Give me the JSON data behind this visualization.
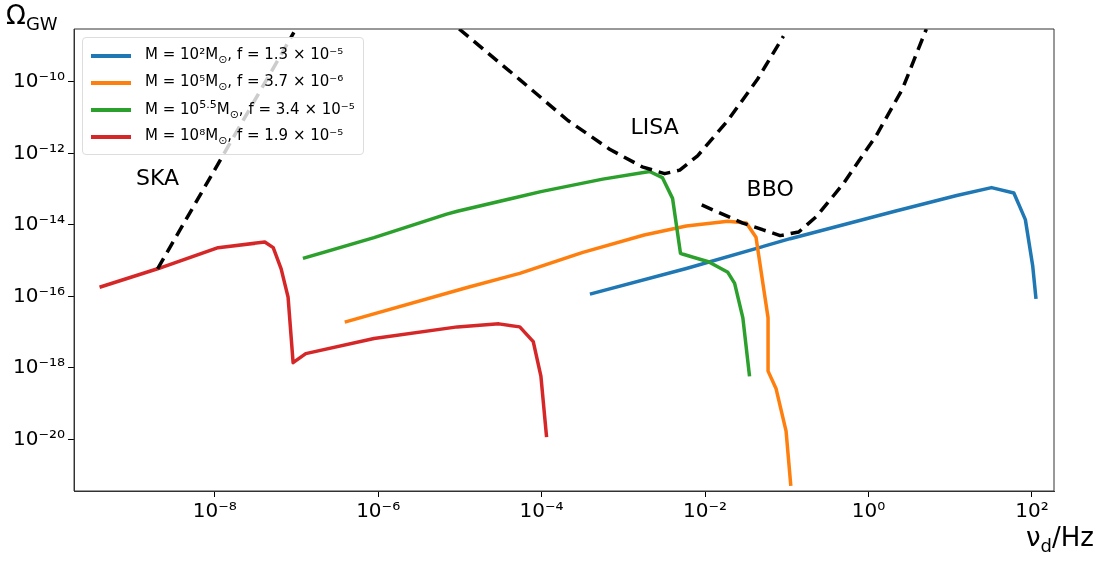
{
  "chart_data": {
    "type": "line",
    "log": "xy",
    "xlabel": "ν$_{d}$/Hz",
    "ylabel": "Ω$_{GW}$",
    "legend": "top left",
    "marker": "none",
    "xlim": [
      1.9e-10,
      186
    ],
    "ylim": [
      3.6e-22,
      3e-09
    ],
    "xticks": [
      {
        "value": 1e-08,
        "label": "10⁻⁸"
      },
      {
        "value": 1e-06,
        "label": "10⁻⁶"
      },
      {
        "value": 0.0001,
        "label": "10⁻⁴"
      },
      {
        "value": 0.01,
        "label": "10⁻²"
      },
      {
        "value": 1,
        "label": "10⁰"
      },
      {
        "value": 100,
        "label": "10²"
      }
    ],
    "yticks": [
      {
        "value": 1e-20,
        "label": "10⁻²⁰"
      },
      {
        "value": 1e-18,
        "label": "10⁻¹⁸"
      },
      {
        "value": 1e-16,
        "label": "10⁻¹⁶"
      },
      {
        "value": 1e-14,
        "label": "10⁻¹⁴"
      },
      {
        "value": 1e-12,
        "label": "10⁻¹²"
      },
      {
        "value": 1e-10,
        "label": "10⁻¹⁰"
      }
    ],
    "annotations": [
      "SKA",
      "LISA",
      "BBO"
    ],
    "series": [
      {
        "name": "M = 10²M$_{⊙}$, f = 1.3 × 10⁻⁵",
        "color": "#1f77b4",
        "line_style": "solid",
        "x": [
          0.00039,
          0.0059,
          0.11,
          2.1,
          12,
          32,
          60,
          83,
          102,
          112
        ],
        "values": [
          1.15e-16,
          6e-16,
          4.1e-15,
          2.4e-14,
          6.6e-14,
          1.1e-13,
          7.8e-14,
          1.4e-14,
          7.2e-16,
          8.5e-17
        ]
      },
      {
        "name": "M = 10⁵M$_{⊙}$, f = 3.7 × 10⁻⁶",
        "color": "#ff7f0e",
        "line_style": "solid",
        "x": [
          3.9e-07,
          1.26e-05,
          5.4e-05,
          0.00032,
          0.0018,
          0.0059,
          0.019,
          0.032,
          0.042,
          0.051,
          0.059,
          0.059,
          0.074,
          0.098,
          0.112
        ],
        "values": [
          1.9e-17,
          1.8e-16,
          4.4e-16,
          1.7e-15,
          5.2e-15,
          9.3e-15,
          1.26e-14,
          1.12e-14,
          4.5e-15,
          2.3e-16,
          2.5e-17,
          8.1e-19,
          2.6e-19,
          1.7e-20,
          5e-22
        ]
      },
      {
        "name": "M = 10$^{5.5}$M$_{⊙}$, f = 3.4 × 10⁻⁵",
        "color": "#2ca02c",
        "line_style": "solid",
        "x": [
          1.2e-07,
          8.9e-07,
          6.9e-06,
          9.3e-06,
          9.8e-05,
          0.00056,
          0.0021,
          0.003,
          0.004,
          0.005,
          0.0054,
          0.011,
          0.019,
          0.023,
          0.029,
          0.035
        ],
        "values": [
          1.15e-15,
          4.4e-15,
          2e-14,
          2.4e-14,
          8.5e-14,
          1.9e-13,
          3.1e-13,
          2.1e-13,
          5.5e-14,
          1.6e-15,
          1.5e-15,
          9.3e-16,
          4.7e-16,
          2.3e-16,
          2.5e-17,
          5.8e-19
        ]
      },
      {
        "name": "M = 10⁸M$_{⊙}$, f = 1.9 × 10⁻⁵",
        "color": "#d62728",
        "line_style": "solid",
        "x": [
          3.9e-10,
          2e-09,
          1.1e-08,
          4.1e-08,
          5.2e-08,
          6.5e-08,
          7.9e-08,
          8.7e-08,
          9.1e-08,
          1.3e-07,
          8.9e-07,
          9.3e-06,
          3e-05,
          5.4e-05,
          7.9e-05,
          9.8e-05,
          0.000115
        ],
        "values": [
          1.8e-16,
          5.9e-16,
          2.3e-15,
          3.3e-15,
          2.3e-15,
          5.9e-16,
          9.5e-17,
          5.4e-18,
          1.4e-18,
          2.5e-18,
          6.6e-18,
          1.4e-17,
          1.7e-17,
          1.4e-17,
          5.4e-18,
          5.9e-19,
          1.15e-20
        ]
      },
      {
        "color": "#000000",
        "line_style": "dashed",
        "x": [
          2e-09,
          9.3e-08
        ],
        "values": [
          5.9e-16,
          2.4e-09
        ]
      },
      {
        "color": "#000000",
        "line_style": "dashed",
        "x": [
          9.8e-06,
          5.4e-05,
          0.00021,
          0.00068,
          0.0017,
          0.0032,
          0.0049,
          0.0081,
          0.019,
          0.044,
          0.091
        ],
        "values": [
          3e-09,
          1.15e-10,
          8.3e-12,
          1.3e-12,
          4.2e-13,
          2.7e-13,
          3.4e-13,
          8.5e-13,
          8.3e-12,
          1.2e-10,
          1.9e-09
        ]
      },
      {
        "color": "#000000",
        "line_style": "dashed",
        "x": [
          0.0091,
          0.029,
          0.083,
          0.14,
          0.23,
          0.49,
          1.26,
          2.6,
          5.1
        ],
        "values": [
          3.6e-14,
          1.12e-14,
          5e-15,
          6.3e-15,
          1.7e-14,
          1.4e-13,
          3.3e-12,
          6.3e-11,
          3e-09
        ]
      }
    ]
  }
}
